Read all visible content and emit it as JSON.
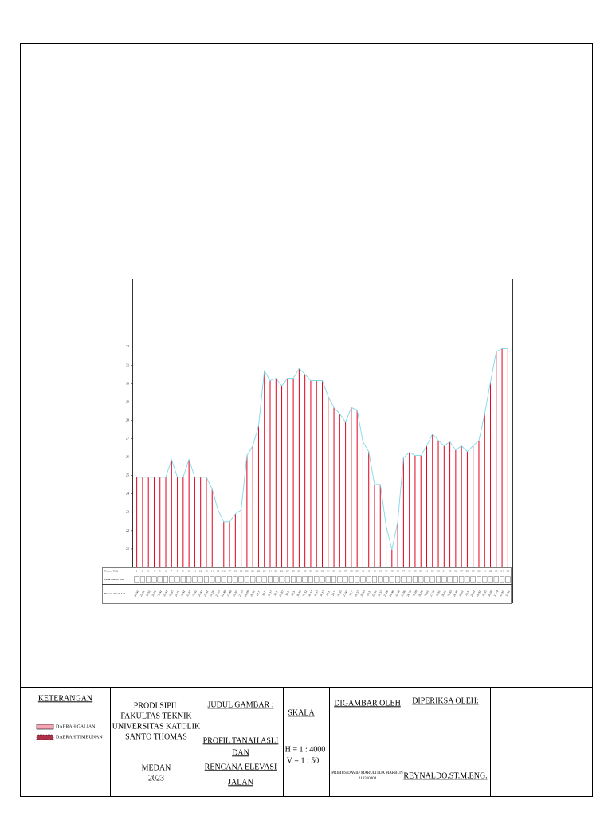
{
  "chart_data": {
    "type": "bar",
    "categories": [
      "1",
      "2",
      "3",
      "4",
      "5",
      "6",
      "7",
      "8",
      "9",
      "10",
      "11",
      "12",
      "13",
      "14",
      "15",
      "16",
      "17",
      "18",
      "19",
      "20",
      "21",
      "22",
      "23",
      "24",
      "25",
      "26",
      "27",
      "28",
      "29",
      "30",
      "31",
      "32",
      "33",
      "34",
      "35",
      "36",
      "37",
      "38",
      "39",
      "40",
      "41",
      "42",
      "43",
      "44",
      "45",
      "46",
      "47",
      "48",
      "49",
      "50",
      "51",
      "52",
      "53",
      "54",
      "55",
      "56",
      "57",
      "58",
      "59",
      "60",
      "61",
      "62",
      "63",
      "64",
      "65"
    ],
    "values": [
      24.91,
      24.91,
      24.91,
      24.91,
      24.91,
      24.91,
      25.87,
      24.91,
      24.91,
      25.87,
      24.91,
      24.91,
      24.91,
      24.26,
      23.13,
      22.48,
      22.48,
      22.91,
      23.13,
      26.09,
      26.61,
      27.7,
      30.7,
      30.17,
      30.3,
      29.87,
      30.3,
      30.3,
      30.83,
      30.52,
      30.17,
      30.17,
      30.17,
      29.3,
      28.7,
      28.35,
      27.91,
      28.7,
      28.57,
      26.83,
      26.3,
      24.52,
      24.52,
      22.26,
      20.96,
      22.48,
      25.96,
      26.26,
      26.09,
      26.09,
      26.61,
      27.26,
      26.91,
      26.61,
      26.83,
      26.39,
      26.61,
      26.3,
      26.61,
      26.91,
      28.35,
      30.09,
      31.74,
      31.91,
      31.91
    ],
    "color": "#e3001b",
    "line_color": "#7fd8e8",
    "ylim": [
      20,
      35.7
    ],
    "yticks": [
      21,
      22,
      23,
      24,
      25,
      26,
      27,
      28,
      29,
      30,
      31,
      32
    ],
    "row_labels": [
      "Nomor Titik",
      "Jarak Antara Titik",
      "Elevasi Tanah Asli"
    ]
  },
  "title_block": {
    "legend": {
      "title": "KETERANGAN",
      "items": [
        {
          "label": "DAERAH GALIAN",
          "color": "#f4a6b6"
        },
        {
          "label": "DAERAH TIMBUNAN",
          "color": "#b0304a"
        }
      ]
    },
    "institution": [
      "PRODI SIPIL",
      "FAKULTAS TEKNIK",
      "UNIVERSITAS KATOLIK",
      "SANTO THOMAS",
      "MEDAN",
      "2023"
    ],
    "drawing_title": {
      "heading": "JUDUL GAMBAR :",
      "lines": [
        "PROFIL TANAH ASLI",
        "DAN",
        "RENCANA ELEVASI",
        "JALAN"
      ]
    },
    "scale": {
      "heading": "SKALA",
      "lines": [
        "H = 1 : 4000",
        "V = 1 : 50"
      ]
    },
    "drawn_by": {
      "heading": "DIGAMBAR OLEH",
      "name": "PRIMUS DAVID MARULITUA MARBUN",
      "id": "210310004"
    },
    "checked_by": {
      "heading": "DIPERIKSA OLEH:",
      "name": "REYNALDO.ST.M.ENG."
    }
  }
}
